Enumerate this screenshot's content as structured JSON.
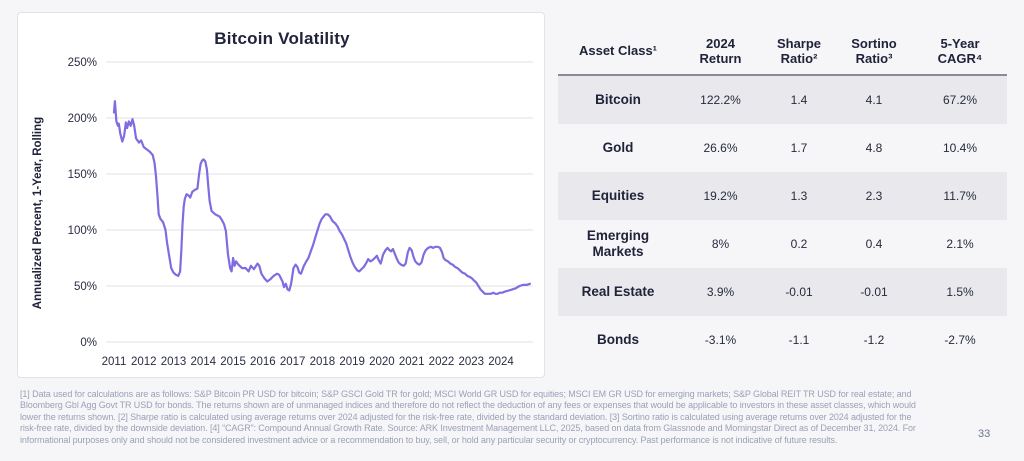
{
  "page": {
    "page_number": "33",
    "background": "#f6f6f8"
  },
  "chart": {
    "title": "Bitcoin Volatility",
    "y_axis_label": "Annualized Percent, 1-Year, Rolling"
  },
  "chart_data": {
    "type": "line",
    "title": "Bitcoin Volatility",
    "ylabel": "Annualized Percent, 1-Year, Rolling",
    "xlabel": "",
    "ylim": [
      0,
      260
    ],
    "grid": "horizontal",
    "legend": "none",
    "yticks": [
      {
        "label": "250%",
        "value": 250
      },
      {
        "label": "200%",
        "value": 200
      },
      {
        "label": "150%",
        "value": 150
      },
      {
        "label": "100%",
        "value": 100
      },
      {
        "label": "50%",
        "value": 50
      },
      {
        "label": "0%",
        "value": 0
      }
    ],
    "xticks": [
      "2011",
      "2012",
      "2013",
      "2014",
      "2015",
      "2016",
      "2017",
      "2018",
      "2019",
      "2020",
      "2021",
      "2022",
      "2023",
      "2024"
    ],
    "series": [
      {
        "name": "Bitcoin annualized volatility, 1-year rolling (%)",
        "color": "#7e6ce0",
        "x_unit": "years since start of 2011",
        "points": [
          [
            0.0,
            205
          ],
          [
            0.03,
            215
          ],
          [
            0.08,
            197
          ],
          [
            0.13,
            193
          ],
          [
            0.16,
            195
          ],
          [
            0.21,
            186
          ],
          [
            0.28,
            179
          ],
          [
            0.34,
            184
          ],
          [
            0.4,
            196
          ],
          [
            0.44,
            191
          ],
          [
            0.5,
            197
          ],
          [
            0.56,
            193
          ],
          [
            0.62,
            199
          ],
          [
            0.68,
            193
          ],
          [
            0.74,
            182
          ],
          [
            0.84,
            178
          ],
          [
            0.91,
            180
          ],
          [
            1.0,
            174
          ],
          [
            1.1,
            172
          ],
          [
            1.2,
            170
          ],
          [
            1.3,
            167
          ],
          [
            1.36,
            160
          ],
          [
            1.41,
            148
          ],
          [
            1.46,
            130
          ],
          [
            1.5,
            114
          ],
          [
            1.56,
            110
          ],
          [
            1.65,
            107
          ],
          [
            1.73,
            100
          ],
          [
            1.78,
            89
          ],
          [
            1.84,
            79
          ],
          [
            1.92,
            66
          ],
          [
            2.0,
            62
          ],
          [
            2.08,
            60
          ],
          [
            2.16,
            59
          ],
          [
            2.22,
            63
          ],
          [
            2.26,
            81
          ],
          [
            2.3,
            105
          ],
          [
            2.34,
            121
          ],
          [
            2.38,
            128
          ],
          [
            2.44,
            132
          ],
          [
            2.5,
            131
          ],
          [
            2.56,
            129
          ],
          [
            2.63,
            134
          ],
          [
            2.72,
            136
          ],
          [
            2.8,
            137
          ],
          [
            2.86,
            150
          ],
          [
            2.91,
            159
          ],
          [
            2.96,
            162
          ],
          [
            3.01,
            163
          ],
          [
            3.07,
            161
          ],
          [
            3.12,
            154
          ],
          [
            3.16,
            141
          ],
          [
            3.21,
            126
          ],
          [
            3.28,
            117
          ],
          [
            3.4,
            114
          ],
          [
            3.55,
            112
          ],
          [
            3.62,
            109
          ],
          [
            3.7,
            105
          ],
          [
            3.76,
            99
          ],
          [
            3.83,
            78
          ],
          [
            3.9,
            66
          ],
          [
            3.95,
            63
          ],
          [
            4.0,
            75
          ],
          [
            4.05,
            68
          ],
          [
            4.1,
            72
          ],
          [
            4.18,
            69
          ],
          [
            4.3,
            66
          ],
          [
            4.42,
            66
          ],
          [
            4.52,
            63
          ],
          [
            4.6,
            68
          ],
          [
            4.7,
            65
          ],
          [
            4.82,
            70
          ],
          [
            4.88,
            68
          ],
          [
            4.95,
            61
          ],
          [
            5.05,
            57
          ],
          [
            5.15,
            54
          ],
          [
            5.25,
            56
          ],
          [
            5.36,
            59
          ],
          [
            5.48,
            61
          ],
          [
            5.55,
            60
          ],
          [
            5.66,
            54
          ],
          [
            5.71,
            49
          ],
          [
            5.77,
            52
          ],
          [
            5.83,
            47
          ],
          [
            5.89,
            46
          ],
          [
            5.95,
            52
          ],
          [
            6.03,
            66
          ],
          [
            6.1,
            69
          ],
          [
            6.16,
            67
          ],
          [
            6.22,
            62
          ],
          [
            6.28,
            61
          ],
          [
            6.38,
            68
          ],
          [
            6.46,
            72
          ],
          [
            6.53,
            75
          ],
          [
            6.61,
            81
          ],
          [
            6.69,
            87
          ],
          [
            6.76,
            93
          ],
          [
            6.84,
            100
          ],
          [
            6.91,
            106
          ],
          [
            6.98,
            110
          ],
          [
            7.04,
            112
          ],
          [
            7.1,
            114
          ],
          [
            7.18,
            114
          ],
          [
            7.26,
            112
          ],
          [
            7.34,
            108
          ],
          [
            7.43,
            106
          ],
          [
            7.51,
            103
          ],
          [
            7.58,
            99
          ],
          [
            7.66,
            96
          ],
          [
            7.73,
            92
          ],
          [
            7.8,
            88
          ],
          [
            7.87,
            82
          ],
          [
            7.94,
            76
          ],
          [
            8.01,
            71
          ],
          [
            8.09,
            67
          ],
          [
            8.17,
            64
          ],
          [
            8.24,
            63
          ],
          [
            8.31,
            65
          ],
          [
            8.39,
            67
          ],
          [
            8.46,
            70
          ],
          [
            8.54,
            74
          ],
          [
            8.61,
            72
          ],
          [
            8.68,
            73
          ],
          [
            8.76,
            75
          ],
          [
            8.83,
            77
          ],
          [
            8.89,
            73
          ],
          [
            8.96,
            70
          ],
          [
            9.04,
            78
          ],
          [
            9.12,
            82
          ],
          [
            9.19,
            84
          ],
          [
            9.25,
            82
          ],
          [
            9.31,
            81
          ],
          [
            9.37,
            83
          ],
          [
            9.43,
            79
          ],
          [
            9.49,
            75
          ],
          [
            9.56,
            71
          ],
          [
            9.64,
            69
          ],
          [
            9.73,
            68
          ],
          [
            9.8,
            70
          ],
          [
            9.87,
            80
          ],
          [
            9.93,
            84
          ],
          [
            10.0,
            82
          ],
          [
            10.06,
            76
          ],
          [
            10.12,
            72
          ],
          [
            10.19,
            70
          ],
          [
            10.26,
            69
          ],
          [
            10.33,
            71
          ],
          [
            10.4,
            78
          ],
          [
            10.47,
            82
          ],
          [
            10.55,
            84
          ],
          [
            10.64,
            85
          ],
          [
            10.72,
            84
          ],
          [
            10.8,
            85
          ],
          [
            10.88,
            85
          ],
          [
            10.95,
            84
          ],
          [
            11.02,
            80
          ],
          [
            11.07,
            75
          ],
          [
            11.14,
            73
          ],
          [
            11.22,
            72
          ],
          [
            11.3,
            70
          ],
          [
            11.38,
            69
          ],
          [
            11.46,
            67
          ],
          [
            11.54,
            66
          ],
          [
            11.62,
            64
          ],
          [
            11.7,
            62
          ],
          [
            11.79,
            61
          ],
          [
            11.87,
            59
          ],
          [
            11.95,
            58
          ],
          [
            12.02,
            57
          ],
          [
            12.09,
            55
          ],
          [
            12.17,
            53
          ],
          [
            12.24,
            50
          ],
          [
            12.31,
            47
          ],
          [
            12.38,
            45
          ],
          [
            12.46,
            43
          ],
          [
            12.56,
            43
          ],
          [
            12.66,
            43
          ],
          [
            12.74,
            44
          ],
          [
            12.81,
            43
          ],
          [
            12.89,
            43
          ],
          [
            12.96,
            44
          ],
          [
            13.04,
            44
          ],
          [
            13.13,
            45
          ],
          [
            13.26,
            46
          ],
          [
            13.38,
            47
          ],
          [
            13.5,
            48
          ],
          [
            13.62,
            50
          ],
          [
            13.74,
            51
          ],
          [
            13.86,
            51
          ],
          [
            13.97,
            52
          ]
        ]
      }
    ]
  },
  "table": {
    "headers": [
      "Asset Class¹",
      "2024\nReturn",
      "Sharpe\nRatio²",
      "Sortino\nRatio³",
      "5-Year\nCAGR⁴"
    ],
    "rows": [
      [
        "Bitcoin",
        "122.2%",
        "1.4",
        "4.1",
        "67.2%"
      ],
      [
        "Gold",
        "26.6%",
        "1.7",
        "4.8",
        "10.4%"
      ],
      [
        "Equities",
        "19.2%",
        "1.3",
        "2.3",
        "11.7%"
      ],
      [
        "Emerging\nMarkets",
        "8%",
        "0.2",
        "0.4",
        "2.1%"
      ],
      [
        "Real Estate",
        "3.9%",
        "-0.01",
        "-0.01",
        "1.5%"
      ],
      [
        "Bonds",
        "-3.1%",
        "-1.1",
        "-1.2",
        "-2.7%"
      ]
    ],
    "shaded_row_indexes": [
      0,
      2,
      4
    ],
    "shade_color": "#e9e9ed"
  },
  "footnote": {
    "lines": [
      "[1] Data used for calculations are as follows: S&P Bitcoin PR USD for bitcoin; S&P GSCI Gold TR for gold; MSCI World GR USD for equities; MSCI EM GR USD for emerging markets; S&P Global REIT TR USD for real estate; and",
      "Bloomberg Gbl Agg Govt TR USD for bonds. The returns shown are of unmanaged indices and therefore do not reflect the deduction of any fees or expenses that would be applicable to investors in these asset classes, which would",
      "lower the returns shown. [2] Sharpe ratio is calculated using average returns over 2024 adjusted for the risk-free rate, divided by the standard deviation. [3] Sortino ratio is calculated using average returns over 2024 adjusted for the",
      "risk-free rate, divided by the downside deviation. [4] “CAGR”: Compound Annual Growth Rate. Source: ARK Investment Management LLC, 2025, based on data from Glassnode and Morningstar Direct as of December 31, 2024. For",
      "informational purposes only and should not be considered investment advice or a recommendation to buy, sell, or hold any particular security or cryptocurrency. Past performance is not indicative of future results."
    ]
  }
}
